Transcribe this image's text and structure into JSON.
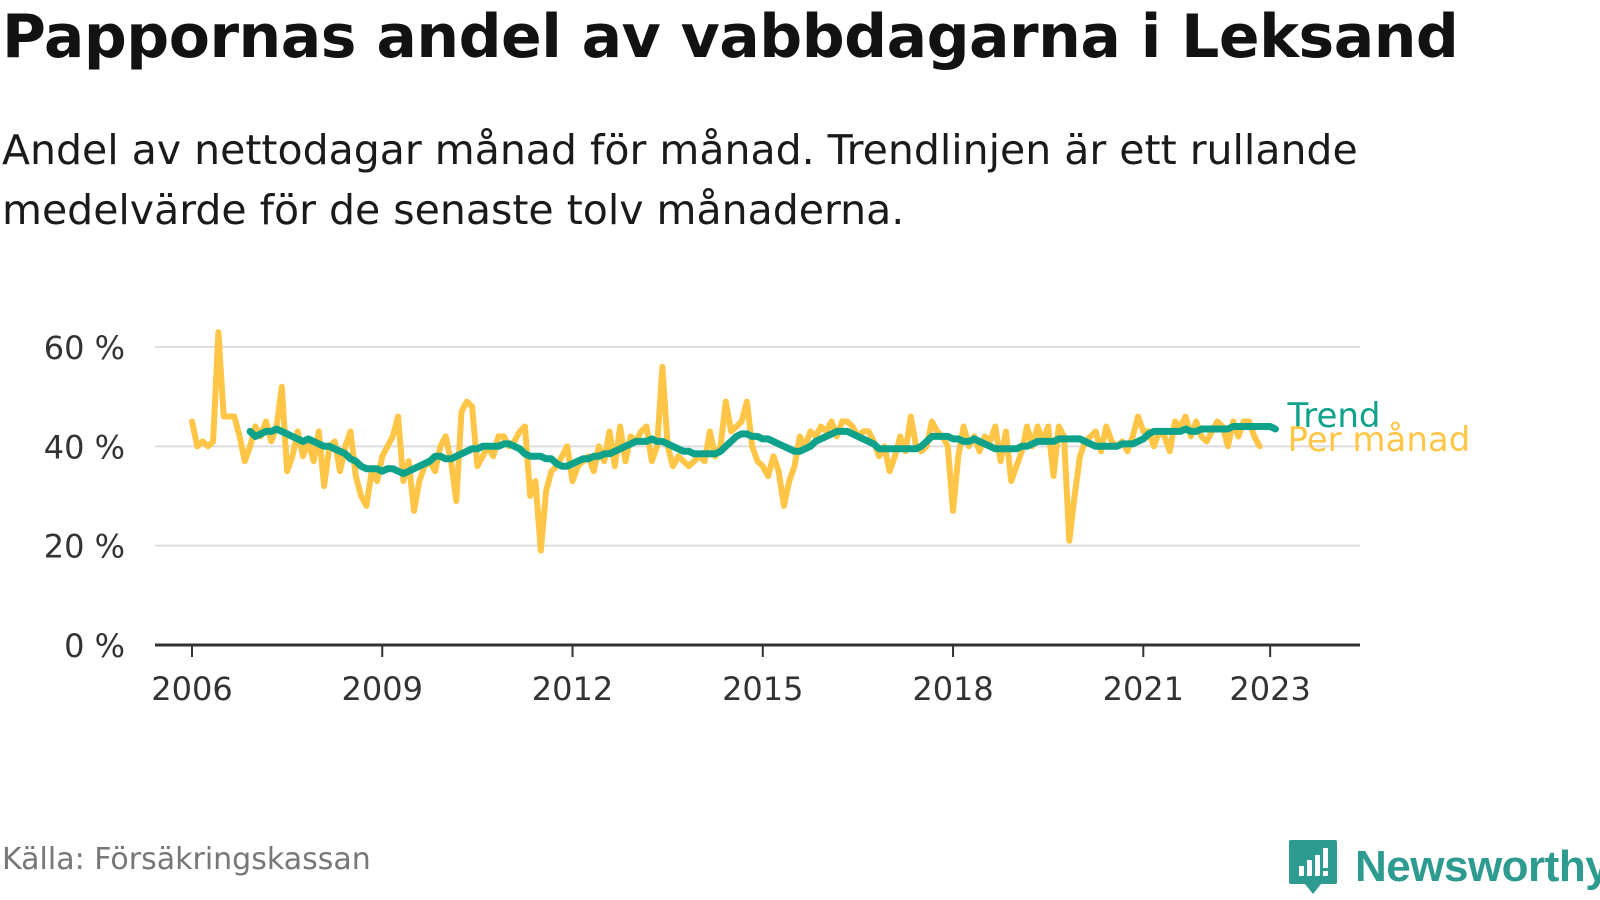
{
  "title": "Pappornas andel av vabbdagarna i Leksand",
  "subtitle": "Andel av nettodagar månad för månad. Trendlinjen är ett rullande medelvärde för de senaste tolv månaderna.",
  "source": "Källa: Försäkringskassan",
  "brand": "Newsworthy",
  "colors": {
    "monthly": "#ffc546",
    "trend": "#0ea28a",
    "axis": "#333333",
    "grid": "#dddddd",
    "brand": "#2d9b8f"
  },
  "chart_data": {
    "type": "line",
    "x_ticks": [
      "2006",
      "2009",
      "2012",
      "2015",
      "2018",
      "2021",
      "2023"
    ],
    "y_ticks": [
      "0 %",
      "20 %",
      "40 %",
      "60 %"
    ],
    "ylim": [
      0,
      60
    ],
    "xlim": [
      "2005-06",
      "2024-06"
    ],
    "grid": true,
    "series": [
      {
        "name": "Per månad",
        "start": "2006-01",
        "values": [
          45,
          40,
          41,
          40,
          41,
          63,
          46,
          46,
          46,
          42,
          37,
          40,
          44,
          42,
          45,
          41,
          44,
          52,
          35,
          38,
          43,
          38,
          41,
          37,
          43,
          32,
          40,
          41,
          35,
          40,
          43,
          34,
          30,
          28,
          35,
          33,
          38,
          40,
          42,
          46,
          33,
          37,
          27,
          33,
          36,
          37,
          35,
          40,
          42,
          37,
          29,
          47,
          49,
          48,
          36,
          38,
          40,
          38,
          42,
          42,
          40,
          41,
          43,
          44,
          30,
          33,
          19,
          31,
          35,
          36,
          38,
          40,
          33,
          36,
          37,
          38,
          35,
          40,
          37,
          43,
          36,
          44,
          37,
          42,
          41,
          43,
          44,
          37,
          40,
          56,
          40,
          36,
          38,
          37,
          36,
          37,
          38,
          37,
          43,
          38,
          40,
          49,
          43,
          44,
          45,
          49,
          40,
          37,
          36,
          34,
          38,
          35,
          28,
          33,
          36,
          42,
          40,
          43,
          42,
          44,
          43,
          45,
          42,
          45,
          45,
          44,
          42,
          43,
          43,
          41,
          38,
          40,
          35,
          38,
          42,
          39,
          46,
          40,
          39,
          40,
          45,
          43,
          42,
          40,
          27,
          38,
          44,
          40,
          42,
          39,
          42,
          41,
          44,
          37,
          43,
          33,
          36,
          39,
          44,
          40,
          44,
          41,
          44,
          34,
          44,
          42,
          21,
          30,
          38,
          41,
          42,
          43,
          39,
          44,
          41,
          40,
          41,
          39,
          42,
          46,
          43,
          43,
          40,
          43,
          42,
          39,
          45,
          44,
          46,
          42,
          45,
          42,
          41,
          43,
          45,
          44,
          40,
          45,
          42,
          45,
          45,
          42,
          40
        ]
      },
      {
        "name": "Trend",
        "start": "2006-12",
        "values": [
          43,
          42,
          42.5,
          43,
          43,
          43.5,
          43,
          42.5,
          42,
          41.5,
          41,
          41.5,
          41,
          40.5,
          40,
          40,
          39.5,
          39,
          38.5,
          37.5,
          37,
          36,
          35.5,
          35.5,
          35.5,
          35,
          35.5,
          35.5,
          35,
          34.5,
          35,
          35.5,
          36,
          36.5,
          37,
          38,
          38,
          37.5,
          37.5,
          38,
          38.5,
          39,
          39.5,
          39.5,
          40,
          40,
          40,
          40,
          40.5,
          40.5,
          40,
          39.5,
          38.5,
          38,
          38,
          38,
          37.5,
          37.5,
          36.5,
          36,
          36,
          36.5,
          37,
          37.5,
          37.5,
          38,
          38,
          38.5,
          38.5,
          39,
          39.5,
          40,
          40.5,
          41,
          41,
          41,
          41.5,
          41,
          41,
          40.5,
          40,
          39.5,
          39,
          39,
          38.5,
          38.5,
          38.5,
          38.5,
          38.5,
          39,
          40,
          41,
          42,
          42.5,
          42.5,
          42,
          42,
          41.5,
          41.5,
          41,
          40.5,
          40,
          39.5,
          39,
          39,
          39.5,
          40,
          41,
          41.5,
          42,
          42.5,
          43,
          43,
          43,
          42.5,
          42,
          41.5,
          41,
          40.5,
          39.5,
          39.5,
          39.5,
          39.5,
          39.5,
          39.5,
          39.5,
          39.5,
          40,
          41,
          42,
          42,
          42,
          42,
          41.5,
          41.5,
          41,
          41,
          41.5,
          41,
          40.5,
          40,
          39.5,
          39.5,
          39.5,
          39.5,
          39.5,
          40,
          40,
          40.5,
          41,
          41,
          41,
          41,
          41.5,
          41.5,
          41.5,
          41.5,
          41.5,
          41,
          40.5,
          40,
          40,
          40,
          40,
          40,
          40.5,
          40.5,
          40.5,
          41,
          41.5,
          42.5,
          43,
          43,
          43,
          43,
          43,
          43,
          43.5,
          43,
          43,
          43.5,
          43.5,
          43.5,
          43.5,
          43.5,
          43.5,
          44,
          44,
          44,
          44,
          44,
          44,
          44,
          44,
          43.5
        ]
      }
    ]
  }
}
